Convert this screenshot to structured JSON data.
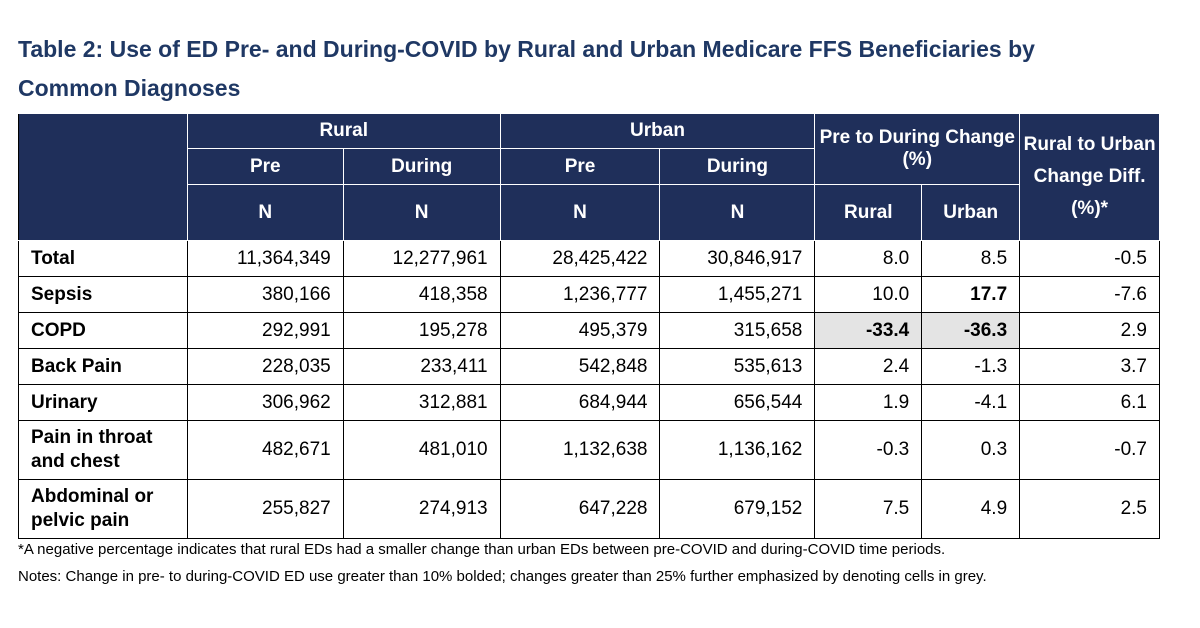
{
  "title": "Table 2: Use of ED Pre- and During-COVID by Rural and Urban Medicare FFS Beneficiaries by Common Diagnoses",
  "table": {
    "header": {
      "groups": [
        "Rural",
        "Urban",
        "Pre to During Change (%)",
        "Rural to Urban Change Diff. (%)*"
      ],
      "periods": [
        "Pre",
        "During",
        "Pre",
        "During"
      ],
      "units": [
        "N",
        "N",
        "N",
        "N",
        "Rural",
        "Urban"
      ]
    },
    "rows": [
      [
        "Total",
        "11,364,349",
        "12,277,961",
        "28,425,422",
        "30,846,917",
        "8.0",
        "8.5",
        "-0.5"
      ],
      [
        "Sepsis",
        "380,166",
        "418,358",
        "1,236,777",
        "1,455,271",
        "10.0",
        "17.7",
        "-7.6"
      ],
      [
        "COPD",
        "292,991",
        "195,278",
        "495,379",
        "315,658",
        "-33.4",
        "-36.3",
        "2.9"
      ],
      [
        "Back Pain",
        "228,035",
        "233,411",
        "542,848",
        "535,613",
        "2.4",
        "-1.3",
        "3.7"
      ],
      [
        "Urinary",
        "306,962",
        "312,881",
        "684,944",
        "656,544",
        "1.9",
        "-4.1",
        "6.1"
      ],
      [
        "Pain in throat and chest",
        "482,671",
        "481,010",
        "1,132,638",
        "1,136,162",
        "-0.3",
        "0.3",
        "-0.7"
      ],
      [
        "Abdominal or pelvic pain",
        "255,827",
        "274,913",
        "647,228",
        "679,152",
        "7.5",
        "4.9",
        "2.5"
      ]
    ],
    "bold_cells": [
      [
        1,
        6
      ],
      [
        2,
        5
      ],
      [
        2,
        6
      ]
    ],
    "shaded_cells": [
      [
        2,
        5
      ],
      [
        2,
        6
      ]
    ]
  },
  "notes": [
    "*A negative percentage indicates that rural EDs had a smaller change than urban EDs between pre-COVID and during-COVID time periods.",
    "Notes: Change in pre- to during-COVID ED use greater than 10% bolded; changes greater than 25% further emphasized by denoting cells in grey."
  ]
}
